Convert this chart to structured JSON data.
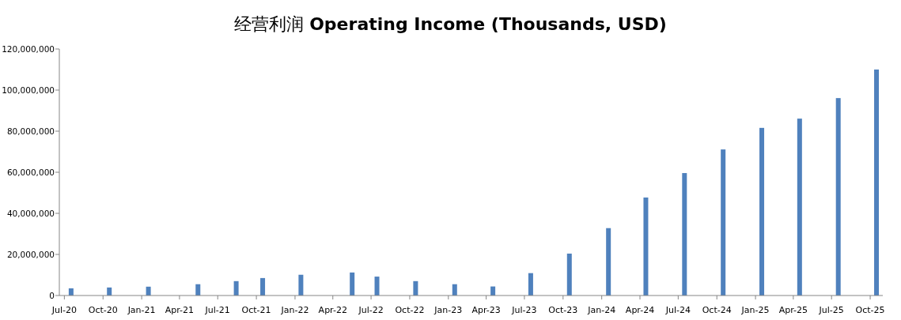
{
  "chart_data": {
    "type": "bar",
    "title": "经营利润 **Operating Income (Thousands, USD)**",
    "x": [
      "2020-07-17",
      "2020-10-16",
      "2021-01-17",
      "2021-05-15",
      "2021-08-14",
      "2021-10-16",
      "2022-01-15",
      "2022-05-17",
      "2022-07-15",
      "2022-10-15",
      "2023-01-16",
      "2023-04-17",
      "2023-07-16",
      "2023-10-16",
      "2024-01-17",
      "2024-04-15",
      "2024-07-16",
      "2024-10-16",
      "2025-01-16",
      "2025-04-16",
      "2025-07-17",
      "2025-10-16"
    ],
    "values": [
      3500000,
      3900000,
      4300000,
      5500000,
      7000000,
      8500000,
      10100000,
      11200000,
      9200000,
      7000000,
      5500000,
      4400000,
      10900000,
      20400000,
      32800000,
      47700000,
      59600000,
      71100000,
      81600000,
      86100000,
      96100000,
      110000000
    ],
    "color": "#4f81bd",
    "xlim": [
      "2020-06-19",
      "2025-10-31"
    ],
    "xticks": [
      {
        "value": "2020-07-01",
        "label": "Jul-20"
      },
      {
        "value": "2020-10-01",
        "label": "Oct-20"
      },
      {
        "value": "2021-01-01",
        "label": "Jan-21"
      },
      {
        "value": "2021-04-01",
        "label": "Apr-21"
      },
      {
        "value": "2021-07-01",
        "label": "Jul-21"
      },
      {
        "value": "2021-10-01",
        "label": "Oct-21"
      },
      {
        "value": "2022-01-01",
        "label": "Jan-22"
      },
      {
        "value": "2022-04-01",
        "label": "Apr-22"
      },
      {
        "value": "2022-07-01",
        "label": "Jul-22"
      },
      {
        "value": "2022-10-01",
        "label": "Oct-22"
      },
      {
        "value": "2023-01-01",
        "label": "Jan-23"
      },
      {
        "value": "2023-04-01",
        "label": "Apr-23"
      },
      {
        "value": "2023-07-01",
        "label": "Jul-23"
      },
      {
        "value": "2023-10-01",
        "label": "Oct-23"
      },
      {
        "value": "2024-01-01",
        "label": "Jan-24"
      },
      {
        "value": "2024-04-01",
        "label": "Apr-24"
      },
      {
        "value": "2024-07-01",
        "label": "Jul-24"
      },
      {
        "value": "2024-10-01",
        "label": "Oct-24"
      },
      {
        "value": "2025-01-01",
        "label": "Jan-25"
      },
      {
        "value": "2025-04-01",
        "label": "Apr-25"
      },
      {
        "value": "2025-07-01",
        "label": "Jul-25"
      },
      {
        "value": "2025-10-01",
        "label": "Oct-25"
      }
    ],
    "ylim": [
      0,
      120000000
    ],
    "yticks": [
      0,
      {
        "value": 20000000,
        "label": "20,000,000"
      },
      {
        "value": 40000000,
        "label": "40,000,000"
      },
      {
        "value": 60000000,
        "label": "60,000,000"
      },
      {
        "value": 80000000,
        "label": "80,000,000"
      },
      {
        "value": 100000000,
        "label": "100,000,000"
      },
      {
        "value": 120000000,
        "label": "120,000,000"
      }
    ],
    "grid": false
  }
}
